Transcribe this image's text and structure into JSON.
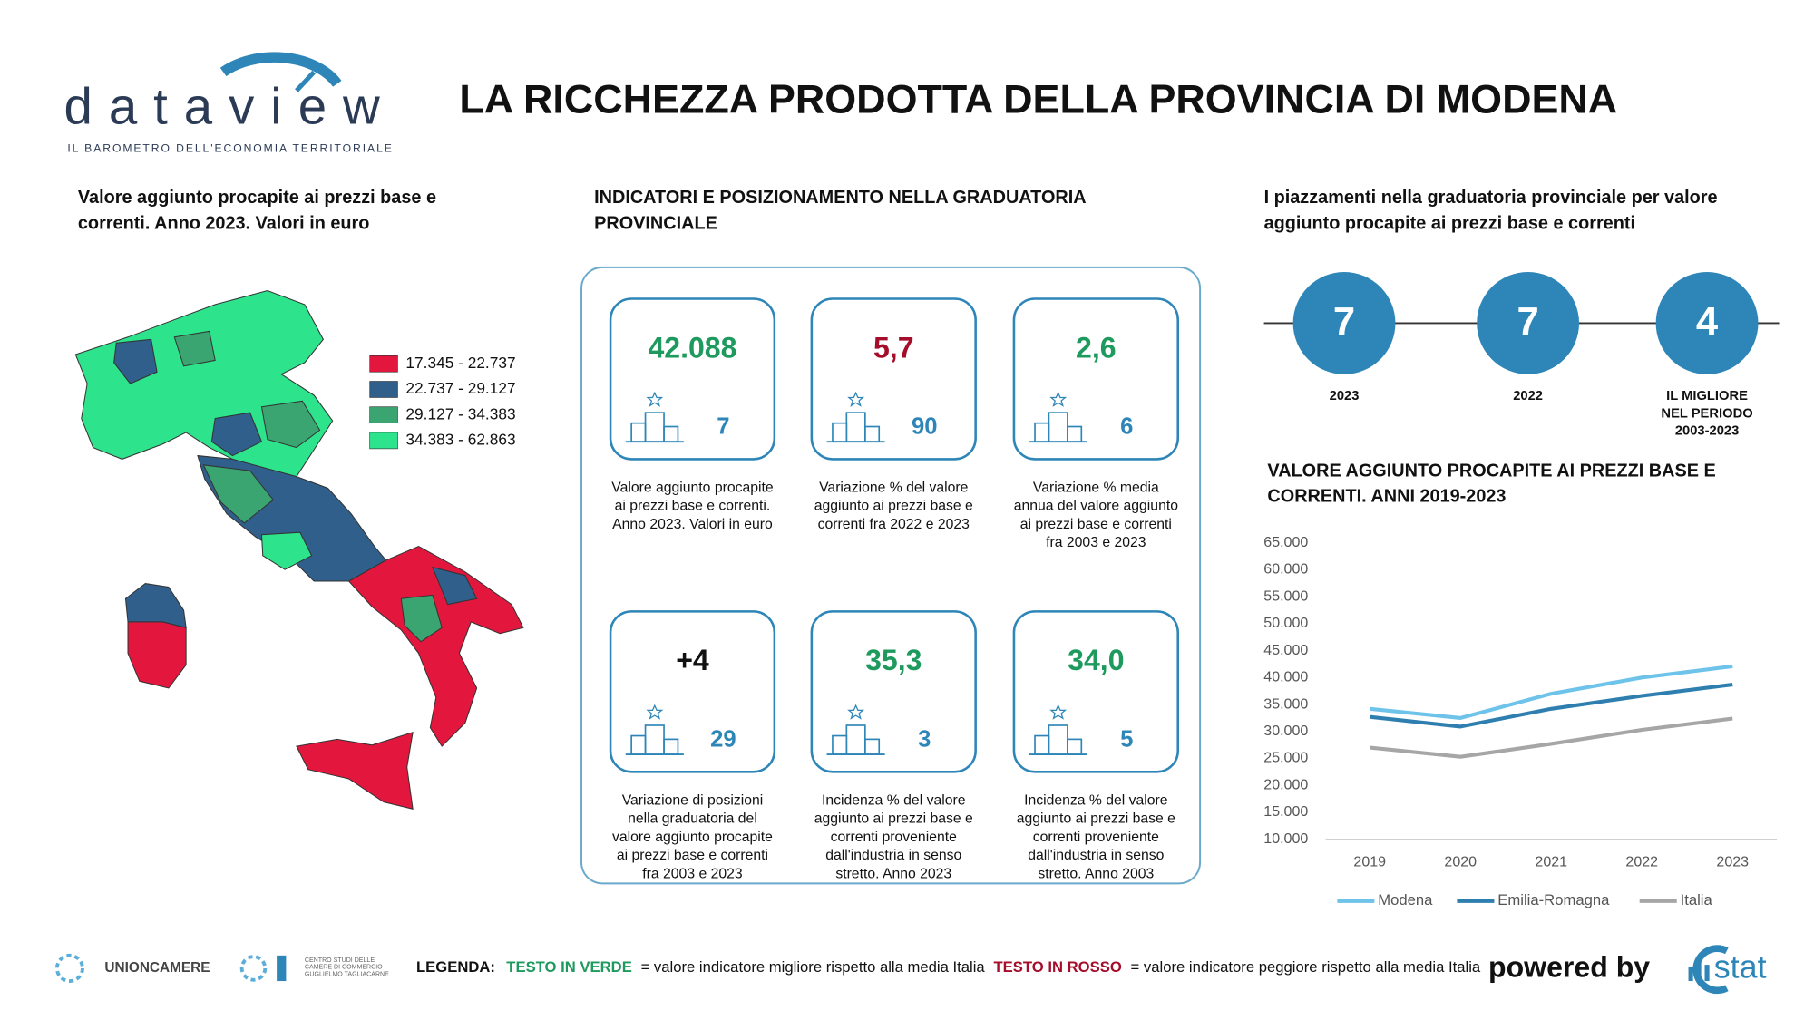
{
  "header": {
    "logo": "dataview",
    "logo_tagline": "IL BAROMETRO DELL'ECONOMIA TERRITORIALE",
    "title": "LA RICCHEZZA PRODOTTA DELLA PROVINCIA DI MODENA"
  },
  "map_panel": {
    "title": [
      "Valore aggiunto procapite ai prezzi base e",
      "correnti. Anno 2023. Valori in euro"
    ],
    "legend": [
      {
        "label": "17.345 - 22.737",
        "color": "#e3173e"
      },
      {
        "label": "22.737 - 29.127",
        "color": "#2f5f8a"
      },
      {
        "label": "29.127 - 34.383",
        "color": "#3aa571"
      },
      {
        "label": "34.383 - 62.863",
        "color": "#2de38c"
      }
    ]
  },
  "indicators": {
    "title": [
      "INDICATORI E POSIZIONAMENTO NELLA GRADUATORIA",
      "PROVINCIALE"
    ],
    "cards": [
      {
        "value": "42.088",
        "color": "#1e9a5e",
        "rank": 7,
        "description": [
          "Valore aggiunto procapite",
          "ai prezzi base e correnti.",
          "Anno 2023. Valori in euro"
        ]
      },
      {
        "value": "5,7",
        "color": "#a50d2a",
        "rank": 90,
        "description": [
          "Variazione % del valore",
          "aggiunto ai prezzi base e",
          "correnti fra 2022 e 2023"
        ]
      },
      {
        "value": "2,6",
        "color": "#1e9a5e",
        "rank": 6,
        "description": [
          "Variazione % media",
          "annua del valore aggiunto",
          "ai prezzi base e correnti",
          "fra 2003 e 2023"
        ]
      },
      {
        "value": "+4",
        "color": "#111111",
        "rank": 29,
        "description": [
          "Variazione di posizioni",
          "nella graduatoria del",
          "valore aggiunto procapite",
          "ai prezzi base e correnti",
          "fra 2003 e 2023"
        ]
      },
      {
        "value": "35,3",
        "color": "#1e9a5e",
        "rank": 3,
        "description": [
          "Incidenza % del valore",
          "aggiunto ai prezzi base e",
          "correnti proveniente",
          "dall'industria in senso",
          "stretto. Anno 2023"
        ]
      },
      {
        "value": "34,0",
        "color": "#1e9a5e",
        "rank": 5,
        "description": [
          "Incidenza % del valore",
          "aggiunto ai prezzi base e",
          "correnti proveniente",
          "dall'industria in senso",
          "stretto. Anno 2003"
        ]
      }
    ]
  },
  "ranking": {
    "title": [
      "I piazzamenti nella graduatoria provinciale per valore",
      "aggiunto procapite ai prezzi base e correnti"
    ],
    "items": [
      {
        "value": 7,
        "label": [
          "2023"
        ]
      },
      {
        "value": 7,
        "label": [
          "2022"
        ]
      },
      {
        "value": 4,
        "label": [
          "IL MIGLIORE",
          "NEL PERIODO",
          "2003-2023"
        ]
      }
    ]
  },
  "chart_data": {
    "type": "line",
    "title": [
      "VALORE AGGIUNTO PROCAPITE AI PREZZI BASE E",
      "CORRENTI. ANNI 2019-2023"
    ],
    "categories": [
      "2019",
      "2020",
      "2021",
      "2022",
      "2023"
    ],
    "series": [
      {
        "name": "Modena",
        "color": "#6ec3ea",
        "values": [
          34200,
          32500,
          37000,
          40000,
          42088
        ]
      },
      {
        "name": "Emilia-Romagna",
        "color": "#2e7fb0",
        "values": [
          32700,
          30900,
          34200,
          36600,
          38700
        ]
      },
      {
        "name": "Italia",
        "color": "#a6a6a6",
        "values": [
          27000,
          25300,
          27700,
          30300,
          32400
        ]
      }
    ],
    "ylim": [
      10000,
      65000
    ],
    "yticks": [
      {
        "value": 10000,
        "label": "10.000"
      },
      {
        "value": 15000,
        "label": "15.000"
      },
      {
        "value": 20000,
        "label": "20.000"
      },
      {
        "value": 25000,
        "label": "25.000"
      },
      {
        "value": 30000,
        "label": "30.000"
      },
      {
        "value": 35000,
        "label": "35.000"
      },
      {
        "value": 40000,
        "label": "40.000"
      },
      {
        "value": 45000,
        "label": "45.000"
      },
      {
        "value": 50000,
        "label": "50.000"
      },
      {
        "value": 55000,
        "label": "55.000"
      },
      {
        "value": 60000,
        "label": "60.000"
      },
      {
        "value": 65000,
        "label": "65.000"
      }
    ],
    "grid": false,
    "legend": "bottom"
  },
  "footer": {
    "unioncamere": "UNIONCAMERE",
    "tagliacarne": [
      "CENTRO STUDI DELLE",
      "CAMERE DI COMMERCIO",
      "GUGLIELMO TAGLIACARNE"
    ],
    "legend_label": "LEGENDA:",
    "green_text": "TESTO IN VERDE",
    "green_desc": "= valore indicatore migliore rispetto alla media Italia",
    "red_text": "TESTO IN ROSSO",
    "red_desc": "= valore indicatore peggiore rispetto alla media Italia",
    "powered_by": "powered by",
    "brand": "stat"
  }
}
